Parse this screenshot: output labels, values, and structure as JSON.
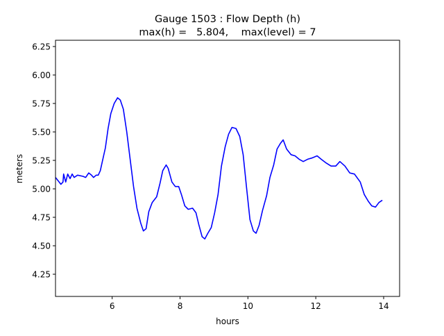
{
  "chart_data": {
    "type": "line",
    "title_line1": "Gauge 1503 : Flow Depth (h)",
    "title_line2": "max(h) =   5.804,    max(level) = 7",
    "xlabel": "hours",
    "ylabel": "meters",
    "xlim": [
      4.33,
      14.47
    ],
    "ylim": [
      4.055,
      6.305
    ],
    "xticks": [
      6,
      8,
      10,
      12,
      14
    ],
    "xtick_labels": [
      "6",
      "8",
      "10",
      "12",
      "14"
    ],
    "yticks": [
      4.25,
      4.5,
      4.75,
      5.0,
      5.25,
      5.5,
      5.75,
      6.0,
      6.25
    ],
    "ytick_labels": [
      "4.25",
      "4.50",
      "4.75",
      "5.00",
      "5.25",
      "5.50",
      "5.75",
      "6.00",
      "6.25"
    ],
    "grid": false,
    "series": [
      {
        "name": "h",
        "color": "#0000ff",
        "x": [
          4.33,
          4.41,
          4.49,
          4.55,
          4.57,
          4.63,
          4.69,
          4.76,
          4.82,
          4.88,
          4.98,
          5.14,
          5.22,
          5.31,
          5.39,
          5.45,
          5.53,
          5.59,
          5.65,
          5.71,
          5.8,
          5.88,
          5.96,
          6.06,
          6.16,
          6.24,
          6.33,
          6.43,
          6.53,
          6.63,
          6.73,
          6.84,
          6.92,
          7.0,
          7.08,
          7.18,
          7.31,
          7.41,
          7.49,
          7.59,
          7.65,
          7.76,
          7.86,
          7.96,
          8.04,
          8.14,
          8.24,
          8.37,
          8.47,
          8.55,
          8.65,
          8.73,
          8.82,
          8.92,
          9.02,
          9.12,
          9.22,
          9.33,
          9.43,
          9.53,
          9.65,
          9.76,
          9.86,
          9.96,
          10.06,
          10.16,
          10.24,
          10.33,
          10.43,
          10.55,
          10.65,
          10.76,
          10.86,
          10.96,
          11.04,
          11.14,
          11.27,
          11.39,
          11.51,
          11.63,
          11.76,
          11.88,
          12.04,
          12.16,
          12.29,
          12.45,
          12.59,
          12.71,
          12.86,
          13.0,
          13.14,
          13.31,
          13.43,
          13.55,
          13.65,
          13.76,
          13.86,
          13.96
        ],
        "y": [
          5.1,
          5.07,
          5.04,
          5.06,
          5.13,
          5.06,
          5.13,
          5.09,
          5.13,
          5.1,
          5.12,
          5.11,
          5.1,
          5.14,
          5.12,
          5.1,
          5.12,
          5.12,
          5.16,
          5.24,
          5.36,
          5.53,
          5.66,
          5.75,
          5.8,
          5.78,
          5.7,
          5.5,
          5.26,
          5.02,
          4.83,
          4.7,
          4.63,
          4.65,
          4.8,
          4.88,
          4.93,
          5.05,
          5.16,
          5.21,
          5.18,
          5.06,
          5.02,
          5.02,
          4.95,
          4.85,
          4.82,
          4.83,
          4.79,
          4.69,
          4.58,
          4.56,
          4.61,
          4.66,
          4.79,
          4.95,
          5.2,
          5.37,
          5.48,
          5.54,
          5.53,
          5.46,
          5.3,
          5.01,
          4.73,
          4.63,
          4.61,
          4.68,
          4.81,
          4.94,
          5.1,
          5.21,
          5.35,
          5.4,
          5.43,
          5.35,
          5.3,
          5.29,
          5.26,
          5.24,
          5.26,
          5.27,
          5.29,
          5.26,
          5.23,
          5.2,
          5.2,
          5.24,
          5.2,
          5.14,
          5.13,
          5.06,
          4.95,
          4.89,
          4.85,
          4.84,
          4.88,
          4.9
        ]
      }
    ]
  }
}
